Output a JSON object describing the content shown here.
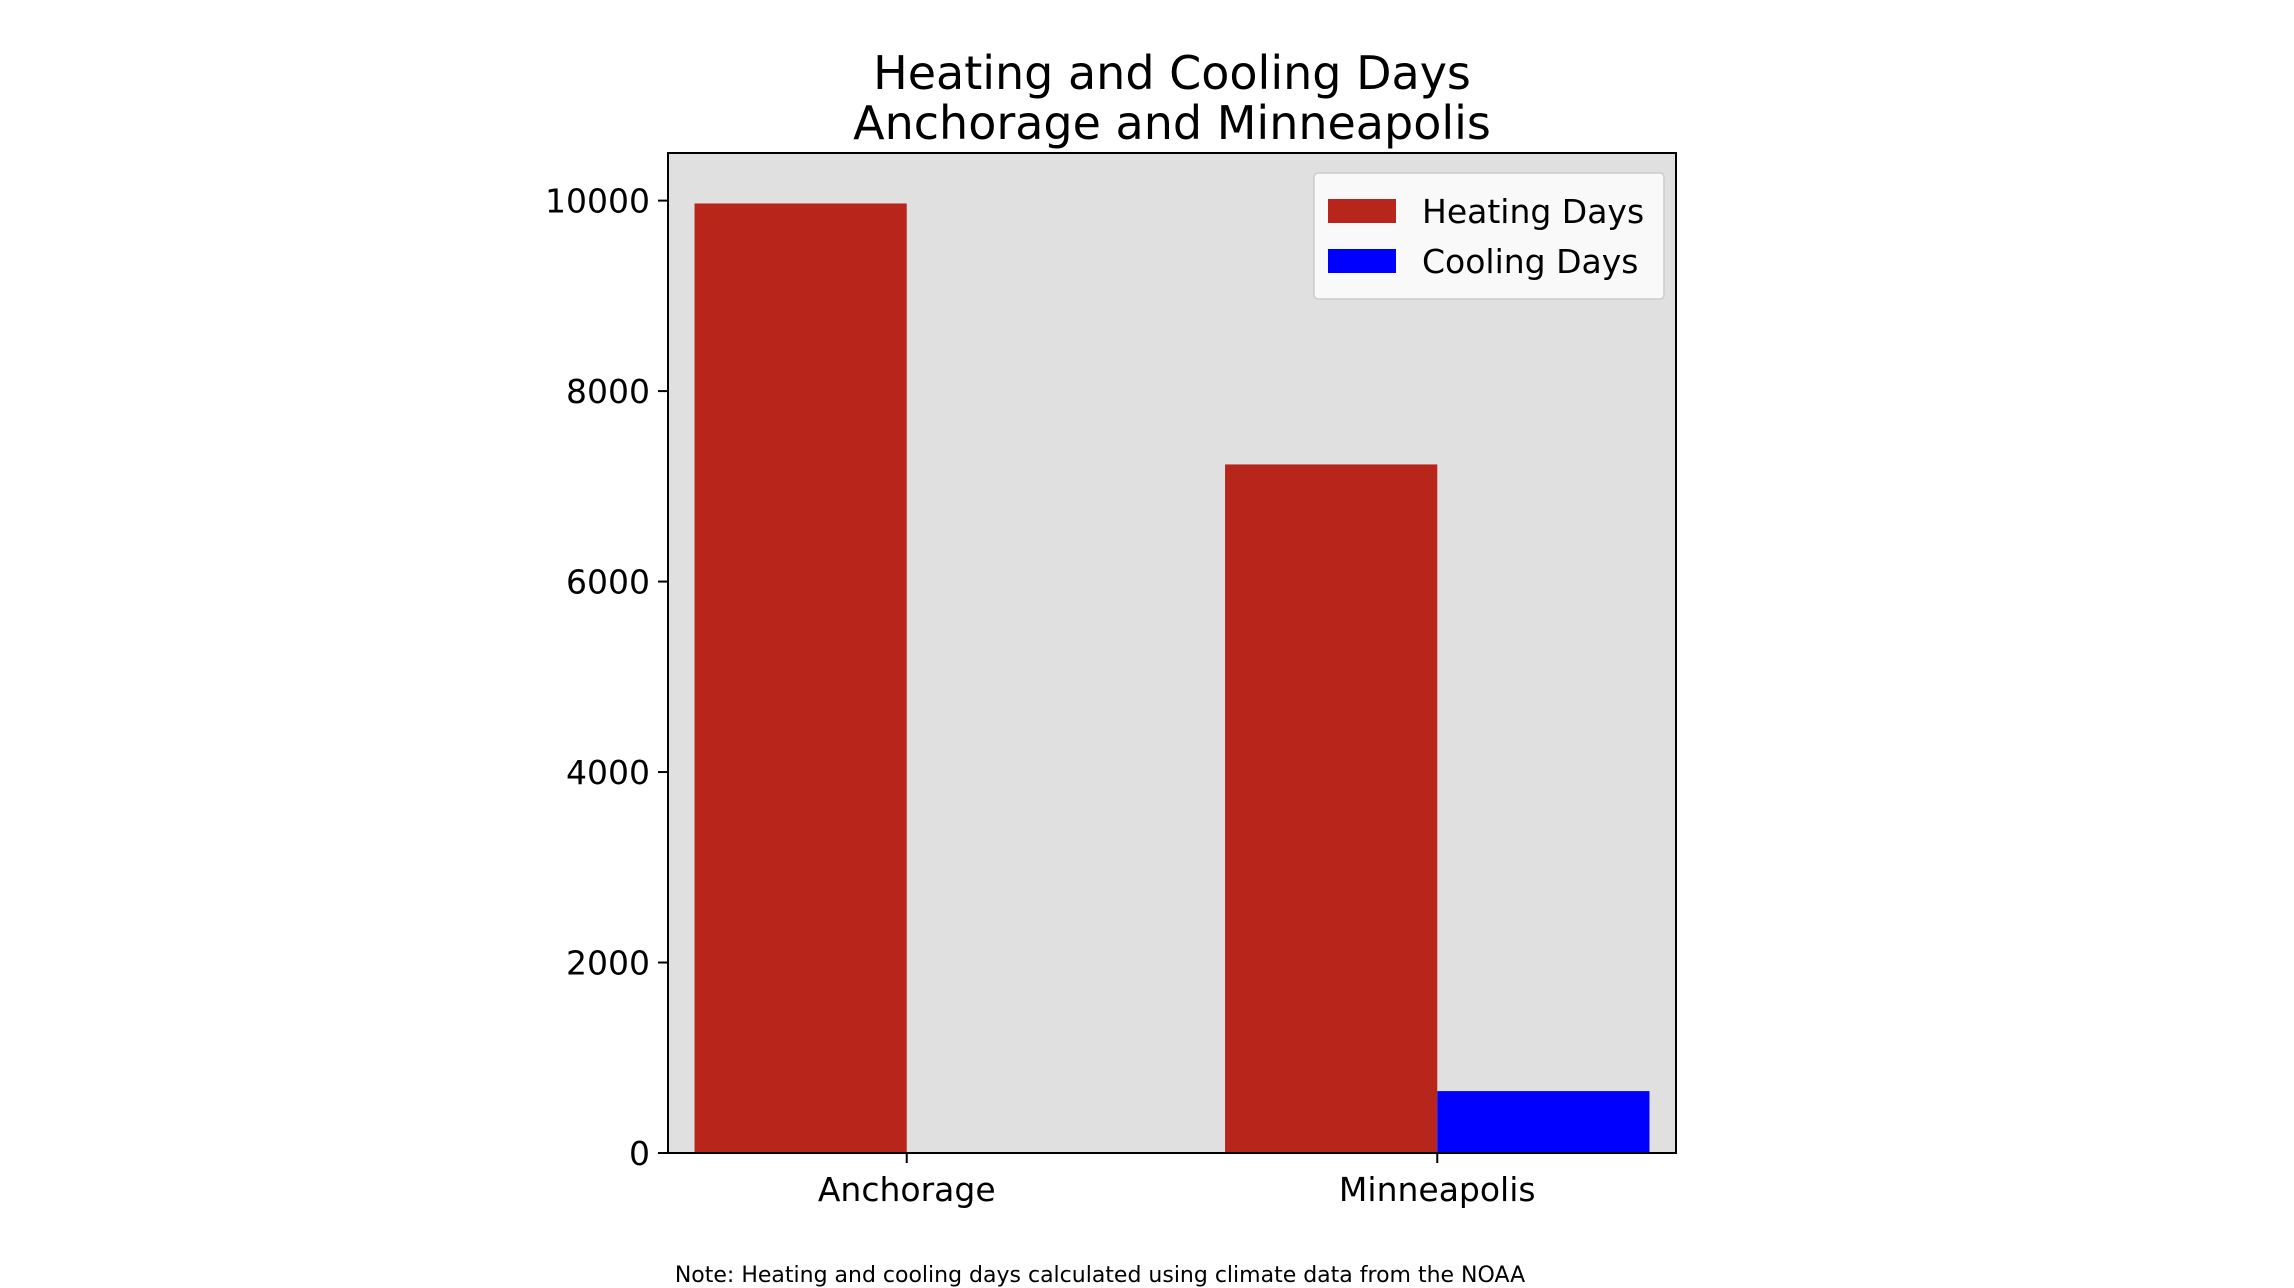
{
  "chart_data": {
    "type": "bar",
    "title": "Heating and Cooling Days",
    "subtitle": "Anchorage and Minneapolis",
    "categories": [
      "Anchorage",
      "Minneapolis"
    ],
    "series": [
      {
        "name": "Heating Days",
        "color": "#b8261b",
        "values": [
          9970,
          7230
        ]
      },
      {
        "name": "Cooling Days",
        "color": "#0000ff",
        "values": [
          0,
          650
        ]
      }
    ],
    "ylim": [
      0,
      10500
    ],
    "yticks": [
      0,
      2000,
      4000,
      6000,
      8000,
      10000
    ],
    "ytick_labels": [
      "0",
      "2000",
      "4000",
      "6000",
      "8000",
      "10000"
    ],
    "xlabel": "",
    "ylabel": "",
    "grid": false,
    "legend_position": "top-right",
    "plot_background": "#e0e0e0"
  },
  "note": "Note: Heating and cooling days calculated using climate data from the NOAA"
}
